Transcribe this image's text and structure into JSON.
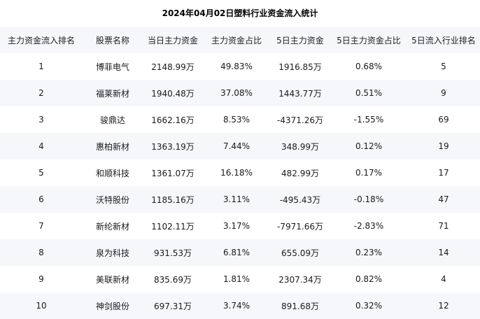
{
  "title": "2024年04月02日塑料行业资金流入统计",
  "columns": [
    "主力资金流入排名",
    "股票名称",
    "当日主力资金",
    "主力资金占比",
    "5日主力资金",
    "5日主力资金占比",
    "5日流入行业排名"
  ],
  "rows": [
    [
      "1",
      "博菲电气",
      "2148.99万",
      "49.83%",
      "1916.85万",
      "0.68%",
      "5"
    ],
    [
      "2",
      "福莱新材",
      "1940.48万",
      "37.08%",
      "1443.77万",
      "0.51%",
      "9"
    ],
    [
      "3",
      "骏鼎达",
      "1662.16万",
      "8.53%",
      "-4371.26万",
      "-1.55%",
      "69"
    ],
    [
      "4",
      "惠柏新材",
      "1363.19万",
      "7.44%",
      "348.99万",
      "0.12%",
      "19"
    ],
    [
      "5",
      "和顺科技",
      "1361.07万",
      "16.18%",
      "482.99万",
      "0.17%",
      "17"
    ],
    [
      "6",
      "沃特股份",
      "1185.16万",
      "3.11%",
      "-495.43万",
      "-0.18%",
      "47"
    ],
    [
      "7",
      "新纶新材",
      "1102.11万",
      "3.17%",
      "-7971.66万",
      "-2.83%",
      "71"
    ],
    [
      "8",
      "泉为科技",
      "931.53万",
      "6.81%",
      "655.09万",
      "0.23%",
      "14"
    ],
    [
      "9",
      "美联新材",
      "835.69万",
      "1.81%",
      "2307.34万",
      "0.82%",
      "4"
    ],
    [
      "10",
      "神剑股份",
      "697.31万",
      "3.74%",
      "891.68万",
      "0.32%",
      "12"
    ]
  ]
}
